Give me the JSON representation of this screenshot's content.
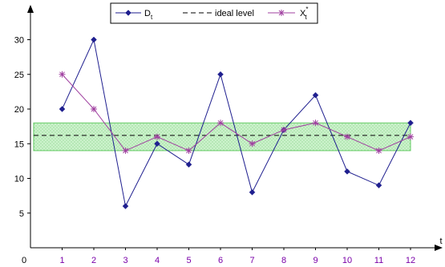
{
  "chart_data": {
    "type": "line",
    "title": "",
    "xlabel": "t",
    "ylabel": "",
    "origin_label": "0",
    "x": [
      1,
      2,
      3,
      4,
      5,
      6,
      7,
      8,
      9,
      10,
      11,
      12
    ],
    "xlim": [
      0,
      12.7
    ],
    "ylim": [
      0,
      35
    ],
    "yticks": [
      5,
      10,
      15,
      20,
      25,
      30
    ],
    "grid": false,
    "legend_position": "top",
    "band": {
      "lower": 14,
      "upper": 18,
      "fill_color": "#ccf2cc",
      "hatch_color": "#88dd88",
      "edge_color": "#66cc66"
    },
    "ideal_level": 16.2,
    "series": [
      {
        "name": "D",
        "subscript": "t",
        "color": "#1f1f8f",
        "marker": "diamond",
        "values": [
          20,
          30,
          6,
          15,
          12,
          25,
          8,
          17,
          22,
          11,
          9,
          18
        ]
      },
      {
        "name": "X",
        "subscript": "t",
        "superscript": "*",
        "color": "#a040a0",
        "marker": "star",
        "values": [
          25,
          20,
          14,
          16,
          14,
          18,
          15,
          17,
          18,
          16,
          14,
          16
        ]
      }
    ],
    "legend_items": [
      {
        "label": "D",
        "sub": "t",
        "sup": ""
      },
      {
        "label": "ideal level",
        "sub": "",
        "sup": ""
      },
      {
        "label": "X",
        "sub": "t",
        "sup": "*"
      }
    ],
    "colors": {
      "axis": "#000000",
      "ideal_line": "#000000",
      "x_tick_text": "#7a00a8"
    }
  }
}
